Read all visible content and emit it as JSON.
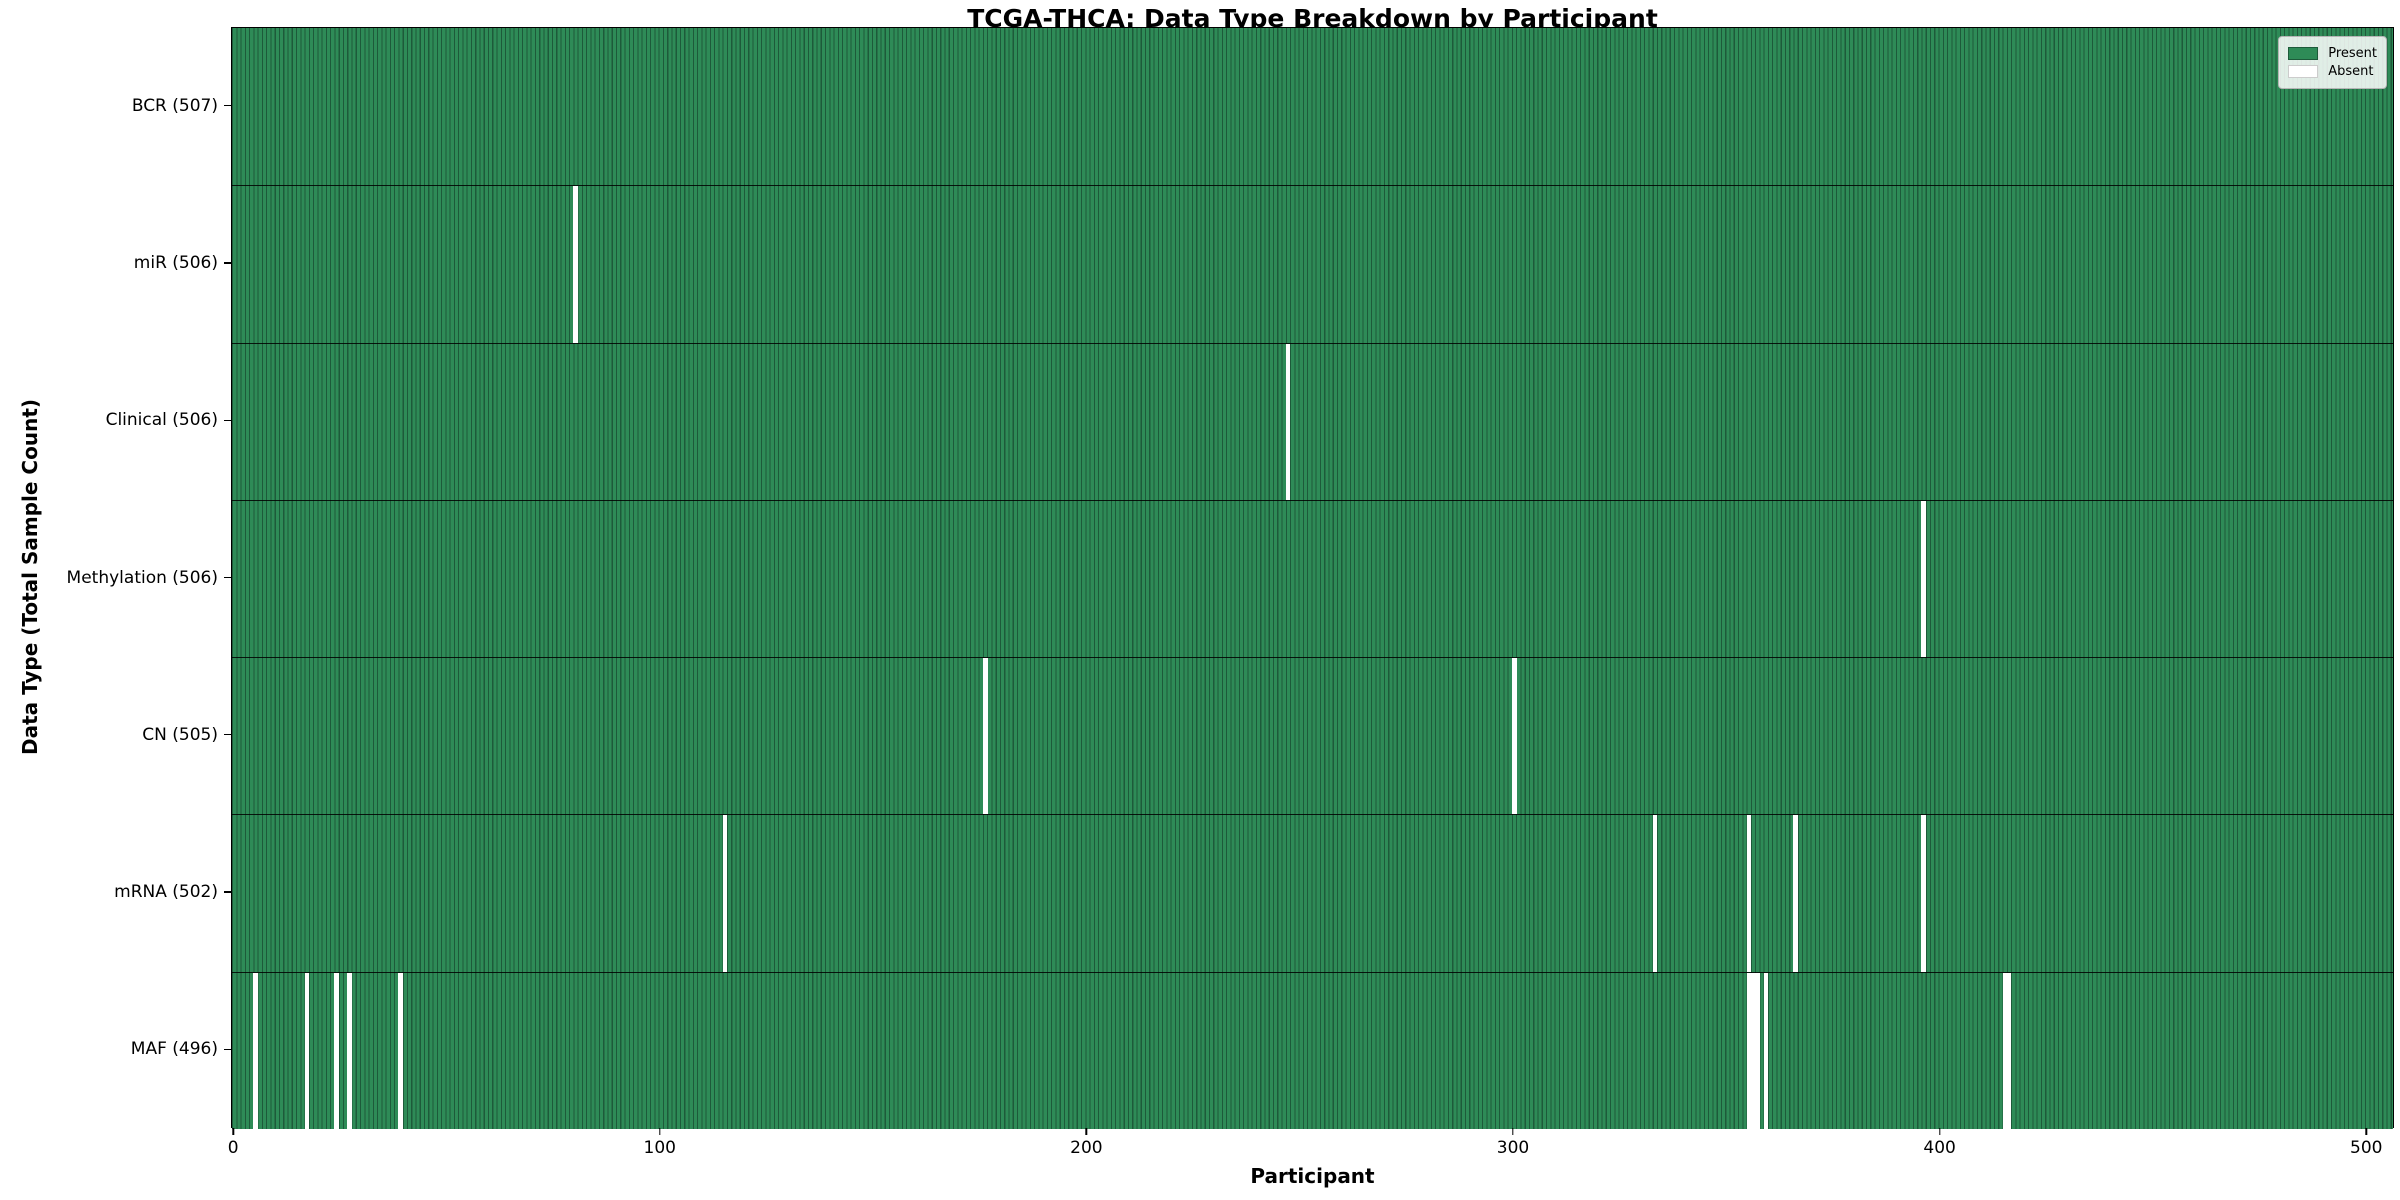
{
  "chart_data": {
    "type": "heatmap",
    "title": "TCGA-THCA: Data Type Breakdown by Participant",
    "xlabel": "Participant",
    "ylabel": "Data Type (Total Sample Count)",
    "n_participants": 507,
    "xlim": [
      -0.5,
      506.5
    ],
    "x_ticks": [
      0,
      100,
      200,
      300,
      400,
      500
    ],
    "grid": false,
    "legend_position": "upper right",
    "colors": {
      "present_fill": "#2e8b57",
      "bar_edge": "#1d5a3a",
      "absent_fill": "#ffffff",
      "absent_edge": "#cccccc",
      "row_separator": "#0d0d0d"
    },
    "legend": [
      {
        "label": "Present",
        "color": "#2e8b57",
        "edge": "#1d5a3a"
      },
      {
        "label": "Absent",
        "color": "#ffffff",
        "edge": "#cccccc"
      }
    ],
    "rows": [
      {
        "label": "BCR (507)",
        "present_count": 507,
        "absent_at": []
      },
      {
        "label": "miR (506)",
        "present_count": 506,
        "absent_at": [
          80
        ]
      },
      {
        "label": "Clinical (506)",
        "present_count": 506,
        "absent_at": [
          247
        ]
      },
      {
        "label": "Methylation (506)",
        "present_count": 506,
        "absent_at": [
          396
        ]
      },
      {
        "label": "CN (505)",
        "present_count": 505,
        "absent_at": [
          176,
          300
        ]
      },
      {
        "label": "mRNA (502)",
        "present_count": 502,
        "absent_at": [
          115,
          333,
          355,
          366,
          396
        ]
      },
      {
        "label": "MAF (496)",
        "present_count": 496,
        "absent_at": [
          5,
          17,
          24,
          27,
          39,
          355,
          356,
          357,
          359,
          415,
          416
        ]
      }
    ]
  }
}
